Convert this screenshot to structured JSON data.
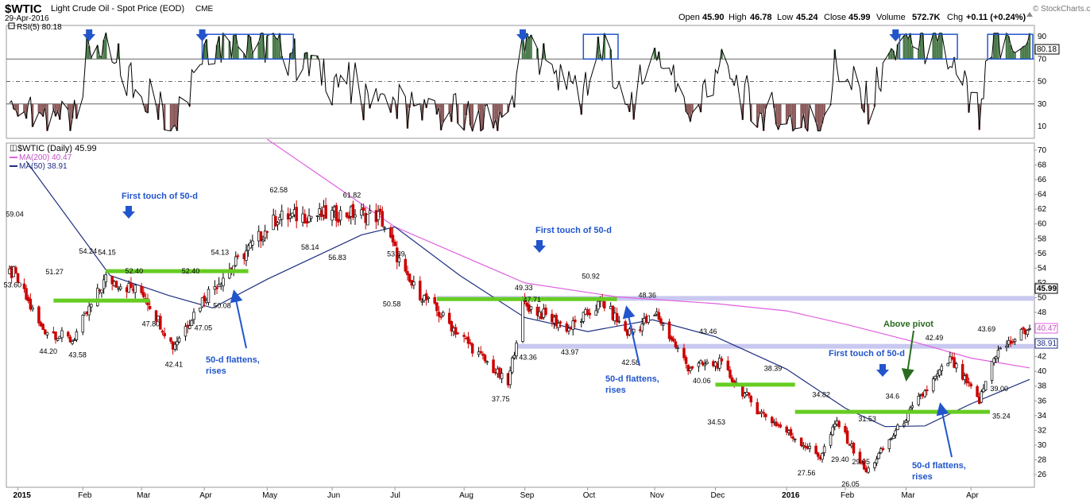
{
  "header": {
    "symbol": "$WTIC",
    "name": "Light Crude Oil - Spot Price (EOD)",
    "exchange": "CME",
    "date": "29-Apr-2016",
    "credit": "© StockCharts.com",
    "open_label": "Open",
    "open": "45.90",
    "high_label": "High",
    "high": "46.78",
    "low_label": "Low",
    "low": "45.24",
    "close_label": "Close",
    "close": "45.99",
    "volume_label": "Volume",
    "volume": "572.7K",
    "chg_label": "Chg",
    "chg": "+0.11 (+0.24%)"
  },
  "rsi_panel": {
    "legend": "RSI(5) 80.18",
    "current_label": "80.18",
    "ticks": [
      90,
      70,
      50,
      30,
      10
    ]
  },
  "price_panel": {
    "legend_main": "$WTIC (Daily) 45.99",
    "legend_ma200": "MA(200) 40.47",
    "legend_ma50": "MA(50) 38.91",
    "ticks": [
      26,
      28,
      30,
      32,
      34,
      36,
      38,
      40,
      42,
      44,
      46,
      48,
      50,
      52,
      54,
      56,
      58,
      60,
      62,
      64,
      66,
      68,
      70
    ],
    "last_labels": [
      "45.99",
      "40.47",
      "38.91"
    ]
  },
  "colors": {
    "up": "#000000",
    "down": "#cc0000",
    "ma200": "#e060e0",
    "ma50": "#1f2f80",
    "support_green": "#66cc22",
    "pivot_band": "#c8c8f0",
    "annot_blue": "#2255cc",
    "annot_green": "#2a6b1f",
    "rsi_fill_up": "#4a7a4a",
    "rsi_fill_down": "#8b5a5a"
  },
  "annotations": {
    "first_touch_1": "First touch of 50-d",
    "first_touch_2": "First touch of 50-d",
    "first_touch_3": "First touch of 50-d",
    "flatten_1a": "50-d flattens,",
    "flatten_1b": "rises",
    "flatten_2a": "50-d flattens,",
    "flatten_2b": "rises",
    "flatten_3a": "50-d flattens,",
    "flatten_3b": "rises",
    "above_pivot": "Above pivot"
  },
  "chart_data": {
    "type": "candlestick",
    "title": "$WTIC Light Crude Oil - Spot Price (EOD)",
    "x_axis_labels": [
      "2015",
      "Feb",
      "Mar",
      "Apr",
      "May",
      "Jun",
      "Jul",
      "Aug",
      "Sep",
      "Oct",
      "Nov",
      "Dec",
      "2016",
      "Feb",
      "Mar",
      "Apr"
    ],
    "ylim": [
      25,
      70
    ],
    "rsi_ylim": [
      0,
      100
    ],
    "price_labels": [
      "59.04",
      "53.60",
      "51.27",
      "44.20",
      "43.58",
      "54.24",
      "54.15",
      "52.40",
      "47.80",
      "42.41",
      "52.40",
      "54.13",
      "50.08",
      "47.05",
      "62.58",
      "58.14",
      "61.82",
      "56.83",
      "53.89",
      "50.58",
      "37.75",
      "49.33",
      "47.71",
      "43.36",
      "50.92",
      "43.97",
      "48.36",
      "42.58",
      "43.46",
      "40.06",
      "38.39",
      "34.53",
      "34.82",
      "27.56",
      "29.40",
      "31.53",
      "26.05",
      "29.05",
      "34.6",
      "42.49",
      "43.69",
      "39.00",
      "35.24"
    ],
    "close_points": [
      {
        "date": "2014-12-31",
        "close": 53.3
      },
      {
        "date": "2015-01-13",
        "close": 45.9
      },
      {
        "date": "2015-01-28",
        "close": 44.2
      },
      {
        "date": "2015-02-13",
        "close": 52.6
      },
      {
        "date": "2015-03-03",
        "close": 50.6
      },
      {
        "date": "2015-03-17",
        "close": 43.4
      },
      {
        "date": "2015-04-01",
        "close": 50.1
      },
      {
        "date": "2015-05-06",
        "close": 60.9
      },
      {
        "date": "2015-06-10",
        "close": 61.4
      },
      {
        "date": "2015-06-24",
        "close": 61.0
      },
      {
        "date": "2015-07-07",
        "close": 52.3
      },
      {
        "date": "2015-08-24",
        "close": 38.2
      },
      {
        "date": "2015-08-31",
        "close": 49.2
      },
      {
        "date": "2015-09-22",
        "close": 45.8
      },
      {
        "date": "2015-10-08",
        "close": 49.4
      },
      {
        "date": "2015-10-20",
        "close": 45.2
      },
      {
        "date": "2015-11-03",
        "close": 47.7
      },
      {
        "date": "2015-11-18",
        "close": 40.6
      },
      {
        "date": "2015-12-03",
        "close": 41.1
      },
      {
        "date": "2015-12-21",
        "close": 34.8
      },
      {
        "date": "2016-01-20",
        "close": 28.4
      },
      {
        "date": "2016-01-28",
        "close": 33.2
      },
      {
        "date": "2016-02-11",
        "close": 26.3
      },
      {
        "date": "2016-03-08",
        "close": 36.5
      },
      {
        "date": "2016-03-22",
        "close": 41.6
      },
      {
        "date": "2016-04-05",
        "close": 35.9
      },
      {
        "date": "2016-04-12",
        "close": 42.2
      },
      {
        "date": "2016-04-29",
        "close": 45.99
      }
    ],
    "ma200_points": [
      {
        "date": "2015-05-01",
        "close": 71.5
      },
      {
        "date": "2015-07-01",
        "close": 59.6
      },
      {
        "date": "2015-09-01",
        "close": 52.0
      },
      {
        "date": "2015-10-15",
        "close": 50.1
      },
      {
        "date": "2015-12-01",
        "close": 49.2
      },
      {
        "date": "2016-01-04",
        "close": 48.2
      },
      {
        "date": "2016-02-01",
        "close": 46.4
      },
      {
        "date": "2016-03-01",
        "close": 44.3
      },
      {
        "date": "2016-04-01",
        "close": 41.8
      },
      {
        "date": "2016-04-29",
        "close": 40.47
      }
    ],
    "ma50_points": [
      {
        "date": "2015-01-06",
        "close": 68.5
      },
      {
        "date": "2015-02-15",
        "close": 53.0
      },
      {
        "date": "2015-03-15",
        "close": 50.3
      },
      {
        "date": "2015-04-05",
        "close": 48.6
      },
      {
        "date": "2015-05-01",
        "close": 52.5
      },
      {
        "date": "2015-06-15",
        "close": 58.5
      },
      {
        "date": "2015-07-01",
        "close": 59.6
      },
      {
        "date": "2015-08-01",
        "close": 53.0
      },
      {
        "date": "2015-09-01",
        "close": 47.3
      },
      {
        "date": "2015-10-01",
        "close": 45.4
      },
      {
        "date": "2015-11-01",
        "close": 47.0
      },
      {
        "date": "2015-12-01",
        "close": 44.7
      },
      {
        "date": "2016-01-04",
        "close": 40.3
      },
      {
        "date": "2016-02-01",
        "close": 35.0
      },
      {
        "date": "2016-02-20",
        "close": 32.5
      },
      {
        "date": "2016-03-10",
        "close": 32.6
      },
      {
        "date": "2016-04-01",
        "close": 35.6
      },
      {
        "date": "2016-04-29",
        "close": 38.91
      }
    ],
    "support_lines": [
      {
        "from": "2015-01-19",
        "to": "2015-03-06",
        "level": 49.6
      },
      {
        "from": "2015-02-13",
        "to": "2015-04-22",
        "level": 53.6
      },
      {
        "from": "2015-07-21",
        "to": "2015-10-15",
        "level": 49.8
      },
      {
        "from": "2015-12-01",
        "to": "2016-01-08",
        "level": 38.2
      },
      {
        "from": "2016-01-08",
        "to": "2016-04-10",
        "level": 34.5
      }
    ],
    "pivot_bands": [
      49.9,
      43.4
    ],
    "rsi_points": [
      {
        "date": "2014-12-31",
        "rsi": 29
      },
      {
        "date": "2015-01-13",
        "rsi": 12
      },
      {
        "date": "2015-01-29",
        "rsi": 26
      },
      {
        "date": "2015-02-06",
        "rsi": 85
      },
      {
        "date": "2015-03-17",
        "rsi": 14
      },
      {
        "date": "2015-04-01",
        "rsi": 82
      },
      {
        "date": "2015-04-15",
        "rsi": 90
      },
      {
        "date": "2015-05-05",
        "rsi": 85
      },
      {
        "date": "2015-06-05",
        "rsi": 48
      },
      {
        "date": "2015-07-10",
        "rsi": 24
      },
      {
        "date": "2015-08-24",
        "rsi": 13
      },
      {
        "date": "2015-08-31",
        "rsi": 88
      },
      {
        "date": "2015-09-28",
        "rsi": 40
      },
      {
        "date": "2015-10-08",
        "rsi": 80
      },
      {
        "date": "2015-10-20",
        "rsi": 22
      },
      {
        "date": "2015-11-03",
        "rsi": 77
      },
      {
        "date": "2015-11-20",
        "rsi": 18
      },
      {
        "date": "2015-12-03",
        "rsi": 65
      },
      {
        "date": "2015-12-21",
        "rsi": 20
      },
      {
        "date": "2016-01-20",
        "rsi": 11
      },
      {
        "date": "2016-01-28",
        "rsi": 65
      },
      {
        "date": "2016-02-11",
        "rsi": 26
      },
      {
        "date": "2016-02-24",
        "rsi": 78
      },
      {
        "date": "2016-03-05",
        "rsi": 90
      },
      {
        "date": "2016-03-18",
        "rsi": 81
      },
      {
        "date": "2016-04-05",
        "rsi": 16
      },
      {
        "date": "2016-04-12",
        "rsi": 86
      },
      {
        "date": "2016-04-29",
        "rsi": 80.18
      }
    ]
  }
}
